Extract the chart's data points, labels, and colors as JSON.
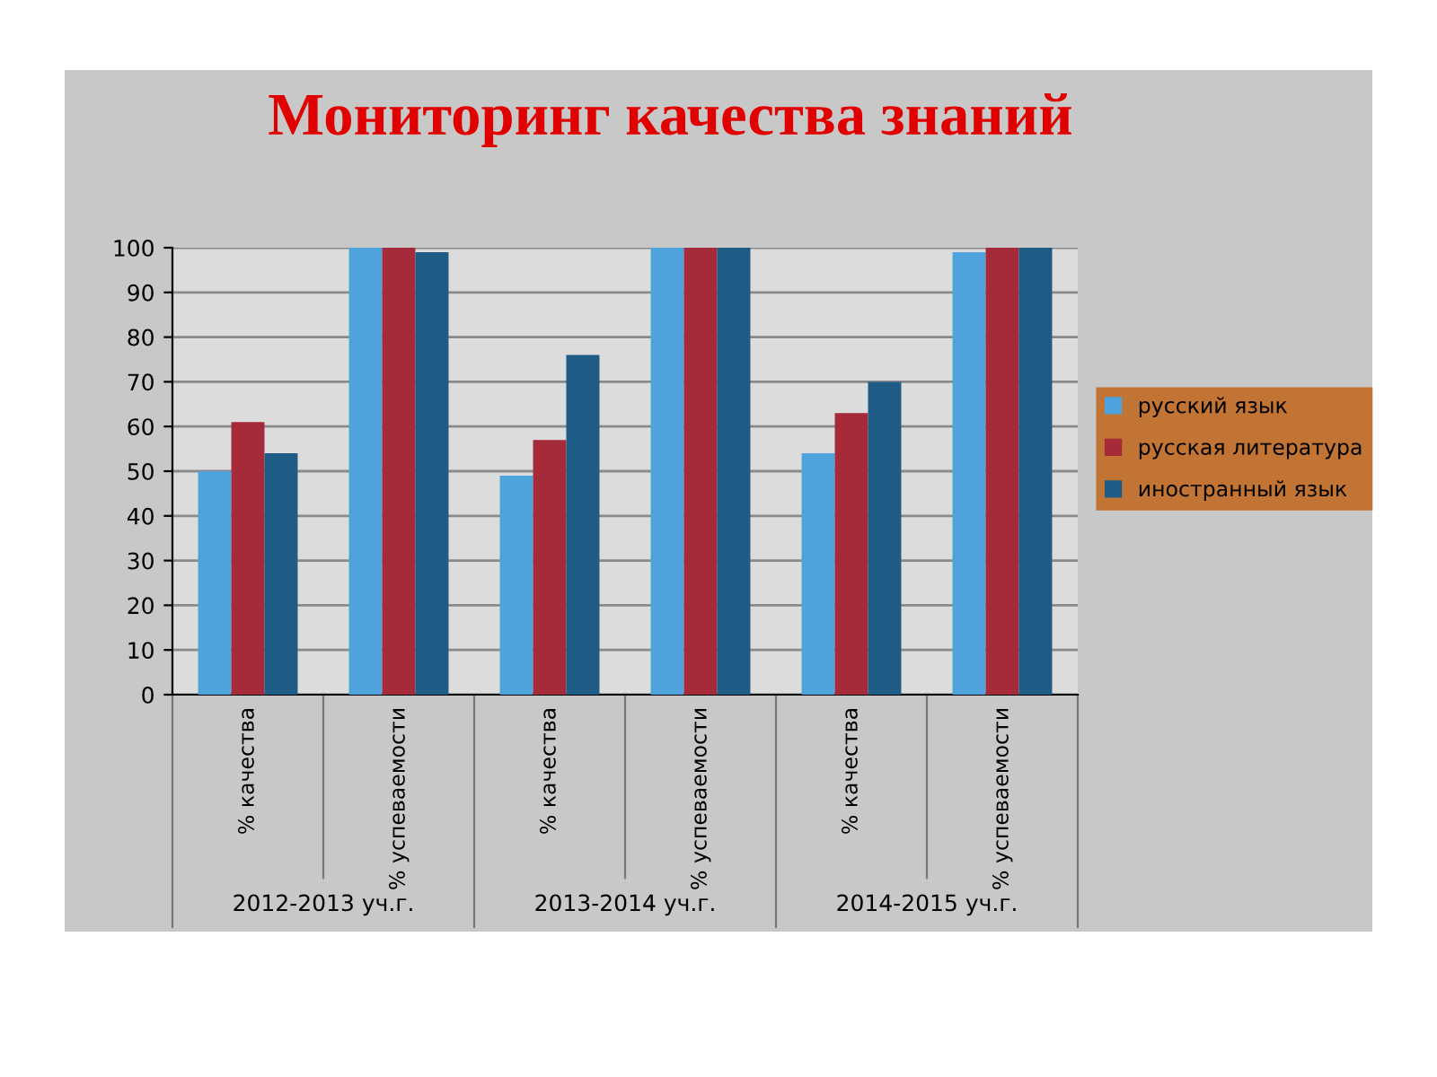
{
  "chart_data": {
    "type": "bar",
    "title": "Мониторинг качества знаний",
    "categories": [
      "% качества",
      "% успеваемости",
      "% качества",
      "% успеваемости",
      "% качества",
      "% успеваемости"
    ],
    "annotations": [
      "2012-2013 уч.г.",
      "2013-2014 уч.г.",
      "2014-2015 уч.г."
    ],
    "series": [
      {
        "name": "русский язык",
        "color": "#4fa3dc",
        "values": [
          50,
          100,
          49,
          100,
          54,
          99
        ]
      },
      {
        "name": "русская литература",
        "color": "#a52a3a",
        "values": [
          61,
          100,
          57,
          100,
          63,
          100
        ]
      },
      {
        "name": "иностранный язык",
        "color": "#1f5c85",
        "values": [
          54,
          99,
          76,
          100,
          70,
          100
        ]
      }
    ],
    "ylim": [
      0,
      100
    ],
    "yticks": [
      0,
      10,
      20,
      30,
      40,
      50,
      60,
      70,
      80,
      90,
      100
    ],
    "grid": "y",
    "legend": "right"
  }
}
